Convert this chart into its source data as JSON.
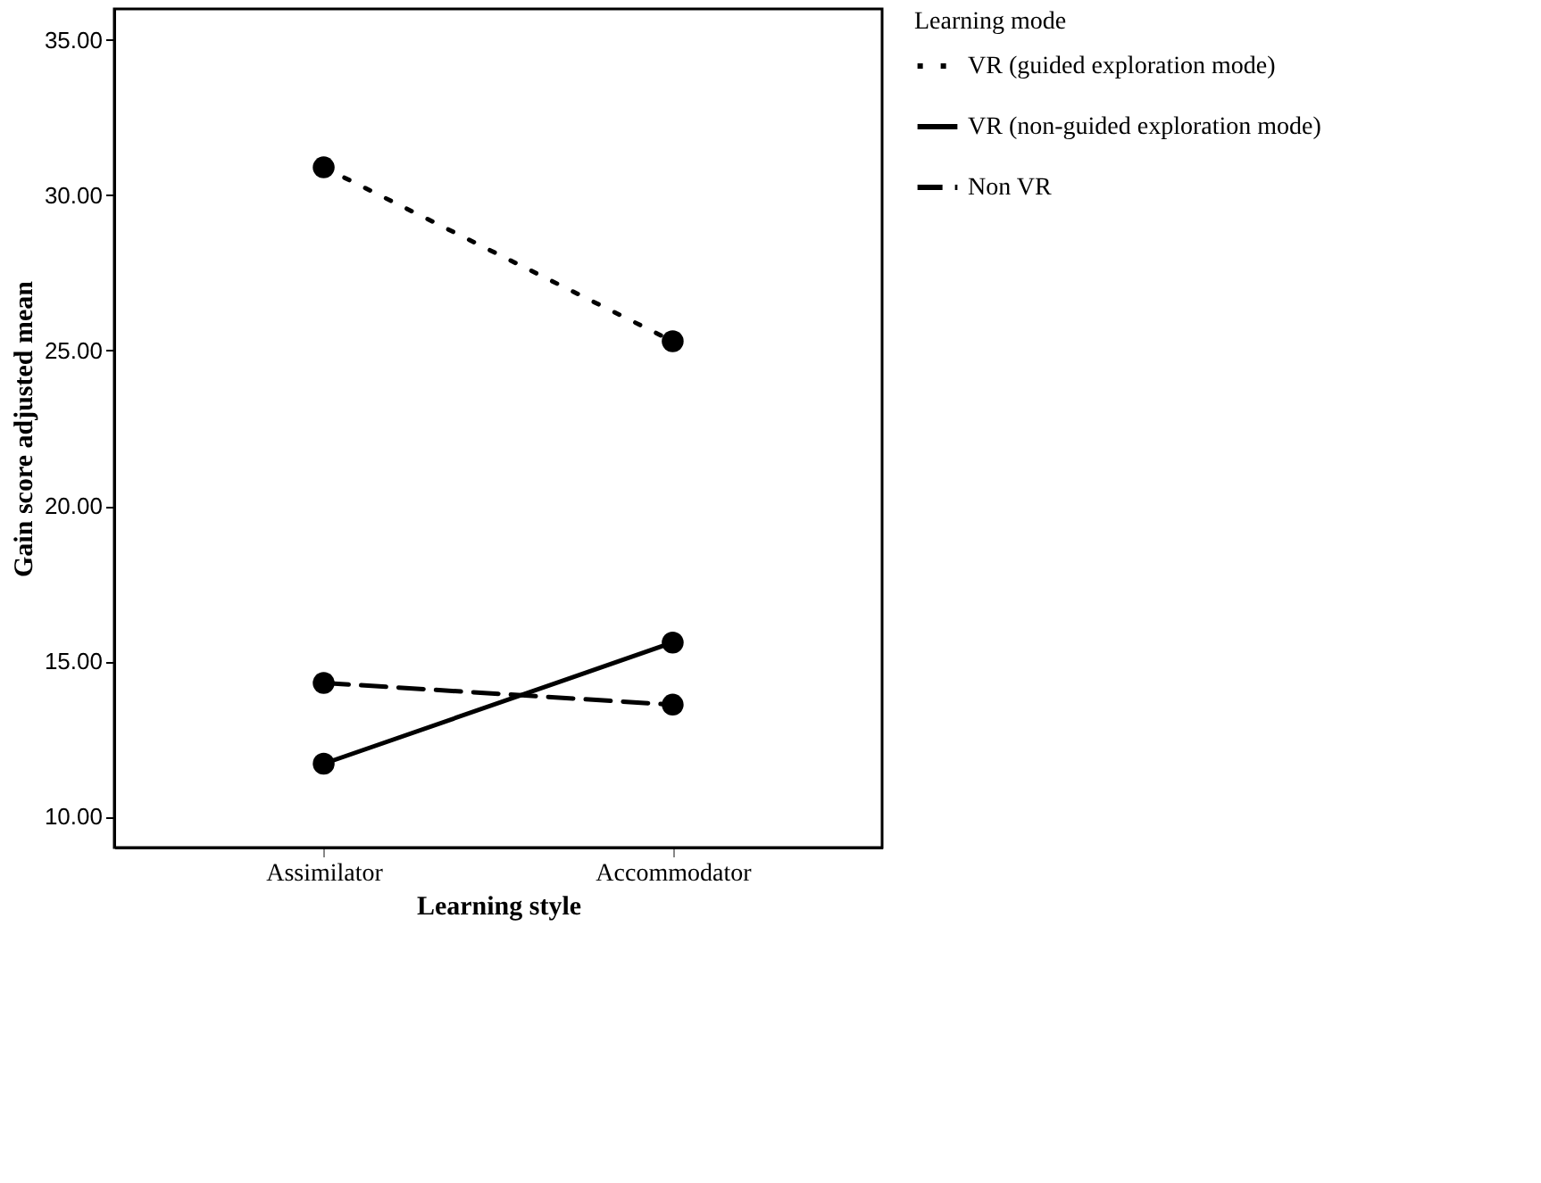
{
  "chart_data": {
    "type": "line",
    "xlabel": "Learning style",
    "ylabel": "Gain score adjusted mean",
    "legend_title": "Learning mode",
    "categories": [
      "Assimilator",
      "Accommodator"
    ],
    "series": [
      {
        "name": "VR (guided exploration mode)",
        "color": "#000000",
        "line_style": "dotted",
        "values": [
          30.9,
          25.3
        ]
      },
      {
        "name": "VR (non-guided exploration mode)",
        "color": "#000000",
        "line_style": "solid",
        "values": [
          11.7,
          15.6
        ]
      },
      {
        "name": "Non VR",
        "color": "#000000",
        "line_style": "dashed",
        "values": [
          14.3,
          13.6
        ]
      }
    ],
    "ylim": [
      9,
      36
    ],
    "yticks": [
      {
        "value": 10,
        "label": "10.00"
      },
      {
        "value": 15,
        "label": "15.00"
      },
      {
        "value": 20,
        "label": "20.00"
      },
      {
        "value": 25,
        "label": "25.00"
      },
      {
        "value": 30,
        "label": "30.00"
      },
      {
        "value": 35,
        "label": "35.00"
      }
    ],
    "grid": false,
    "legend": "right",
    "marker": "circle"
  }
}
